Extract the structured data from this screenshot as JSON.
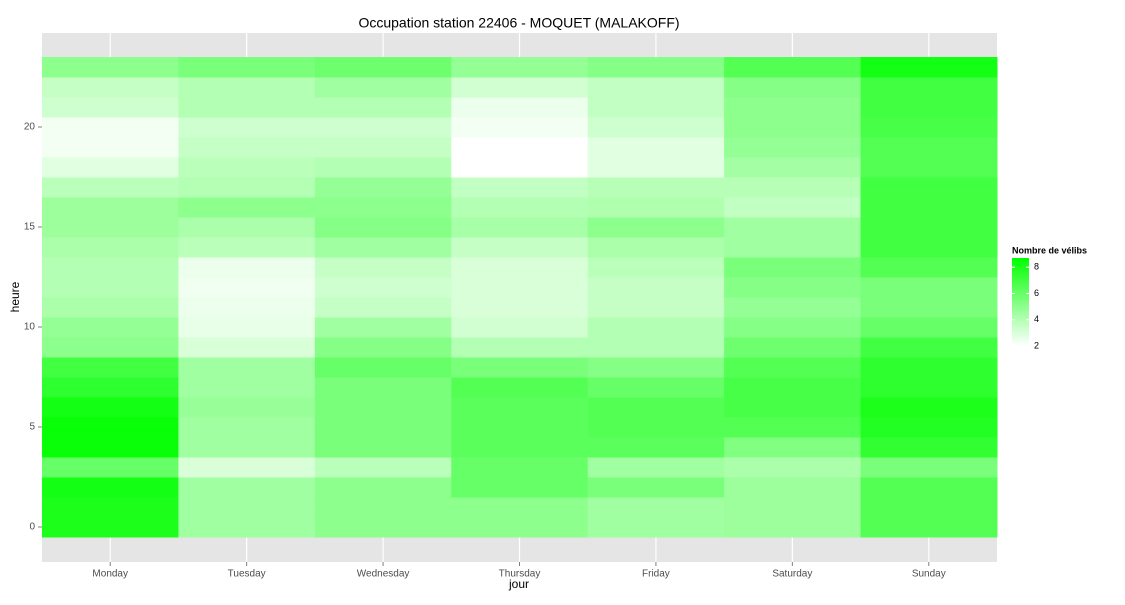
{
  "chart_data": {
    "type": "heatmap",
    "title": "Occupation station 22406 - MOQUET (MALAKOFF)",
    "x_label": "jour",
    "y_label": "heure",
    "categories": [
      "Monday",
      "Tuesday",
      "Wednesday",
      "Thursday",
      "Friday",
      "Saturday",
      "Sunday"
    ],
    "y": [
      0,
      1,
      2,
      3,
      4,
      5,
      6,
      7,
      8,
      9,
      10,
      11,
      12,
      13,
      14,
      15,
      16,
      17,
      18,
      19,
      20,
      21,
      22,
      23
    ],
    "values": [
      [
        8,
        8,
        8.2,
        6,
        8.5,
        8.5,
        8.2,
        7.5,
        7,
        5,
        4.8,
        4.2,
        4,
        4,
        4.2,
        4.6,
        4.6,
        3.8,
        2.8,
        2.3,
        2.3,
        3.3,
        3.5,
        5
      ],
      [
        4.5,
        4.5,
        4.5,
        3,
        4.5,
        4.5,
        4.7,
        4.5,
        4.5,
        3,
        2.6,
        2.5,
        2.4,
        2.5,
        3.8,
        4.2,
        5,
        4,
        3.8,
        3.5,
        3.3,
        4,
        4,
        5.5
      ],
      [
        5,
        5,
        5,
        3.8,
        5.5,
        5.5,
        5.5,
        5.5,
        6,
        5.2,
        4.5,
        3.5,
        3.3,
        3.5,
        4.5,
        5.2,
        5,
        4.8,
        4,
        3.5,
        3.3,
        4,
        4.5,
        5.8
      ],
      [
        5,
        5,
        6,
        6,
        6.3,
        6.3,
        6.3,
        6.5,
        5.5,
        4,
        3.2,
        3,
        3,
        3,
        3.5,
        4.3,
        4,
        3.6,
        2,
        2,
        2.3,
        2.5,
        3.2,
        4.8
      ],
      [
        4.5,
        4.5,
        5.5,
        4.5,
        6.3,
        6.5,
        6.5,
        6,
        5.2,
        4,
        4,
        3.5,
        3.5,
        3.8,
        4.2,
        5,
        4.1,
        3.9,
        2.8,
        2.8,
        3.3,
        3.6,
        3.6,
        5.2
      ],
      [
        4.6,
        4.6,
        4.6,
        4.2,
        5.3,
        6.5,
        6.8,
        6.8,
        6.5,
        5.8,
        5.2,
        4.8,
        5.2,
        5.5,
        4.5,
        4.5,
        3.6,
        3.9,
        4.4,
        4.8,
        5,
        5,
        5.2,
        6.5
      ],
      [
        6.5,
        6.5,
        6.5,
        5.5,
        7.4,
        7.8,
        8,
        7.5,
        7.5,
        7,
        6,
        5.5,
        5.5,
        6.5,
        7,
        7,
        7,
        7,
        6.5,
        6.5,
        6.8,
        7,
        7,
        8.2
      ]
    ],
    "ylim": [
      -1.75,
      24.7
    ],
    "yticks": [
      0,
      5,
      10,
      15,
      20
    ],
    "legend_title": "Nombre de vélibs",
    "clim": [
      2,
      8.7
    ],
    "legend_ticks": [
      2,
      4,
      6,
      8
    ],
    "color_low": "#ffffff",
    "color_high": "#00ff00",
    "grid": true
  }
}
